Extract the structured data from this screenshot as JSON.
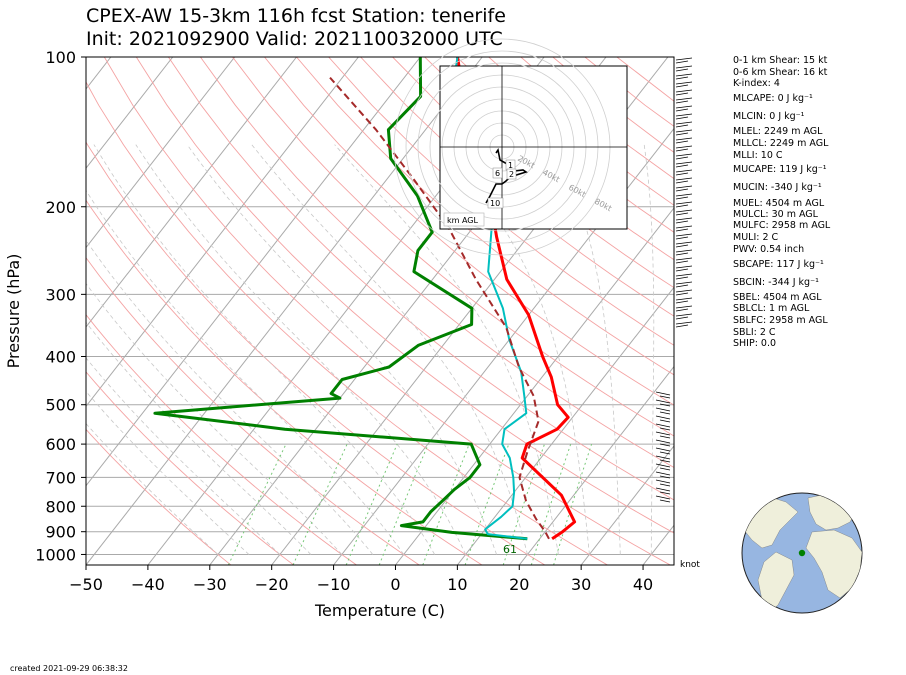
{
  "title_line1": "CPEX-AW 15-3km  116h fcst  Station: tenerife",
  "title_line2": "Init: 2021092900  Valid: 202110032000 UTC",
  "footer": "created 2021-09-29 06:38:32",
  "knots_label": "knot",
  "indices": [
    {
      "text": "0-1 km Shear: 15 kt"
    },
    {
      "text": "0-6 km Shear: 16 kt"
    },
    {
      "text": "K-index: 4"
    },
    {
      "text": "MLCAPE: 0 J kg⁻¹"
    },
    {
      "text": "MLCIN: 0 J kg⁻¹"
    },
    {
      "text": "MLEL: 2249 m AGL"
    },
    {
      "text": "MLLCL: 2249 m AGL"
    },
    {
      "text": "MLLI: 10 C"
    },
    {
      "text": "MUCAPE: 119 J kg⁻¹"
    },
    {
      "text": "MUCIN: -340 J kg⁻¹"
    },
    {
      "text": "MUEL: 4504 m AGL"
    },
    {
      "text": "MULCL: 30 m AGL"
    },
    {
      "text": "MULFC: 2958 m AGL"
    },
    {
      "text": "MULI: 2 C"
    },
    {
      "text": "PWV: 0.54 inch"
    },
    {
      "text": "SBCAPE: 117 J kg⁻¹"
    },
    {
      "text": "SBCIN: -344 J kg⁻¹"
    },
    {
      "text": "SBEL: 4504 m AGL"
    },
    {
      "text": "SBLCL: 1 m AGL"
    },
    {
      "text": "SBLFC: 2958 m AGL"
    },
    {
      "text": "SBLI: 2 C"
    },
    {
      "text": "SHIP: 0.0"
    }
  ],
  "hodograph": {
    "speed_rings": [
      "20kt",
      "40kt",
      "60kt",
      "80kt"
    ],
    "height_labels": [
      "1",
      "2",
      "6",
      "10"
    ],
    "agl_label": "km AGL"
  },
  "colors": {
    "temperature": "#ff0000",
    "dewpoint": "#008000",
    "wetbulb": "#00bfbf",
    "parcel": "#a52a2a",
    "dry_adiabat": "#f4a3a3",
    "moist_adiabat": "#c8c8c8",
    "mixing_ratio": "#78c878",
    "ocean": "#97b6e1",
    "land": "#efefdb"
  },
  "station_pw_label": "61",
  "chart_data": {
    "type": "line",
    "xlabel": "Temperature (C)",
    "ylabel": "Pressure (hPa)",
    "xlim": [
      -50,
      45
    ],
    "ylim": [
      1050,
      100
    ],
    "x_ticks": [
      -50,
      -40,
      -30,
      -20,
      -10,
      0,
      10,
      20,
      30,
      40
    ],
    "y_ticks": [
      100,
      200,
      300,
      400,
      500,
      600,
      700,
      800,
      900,
      1000
    ],
    "y_scale": "log",
    "skew": "skew-T",
    "grid": true,
    "series": [
      {
        "key": "temperature",
        "points": [
          [
            22.0,
            930
          ],
          [
            22.8,
            900
          ],
          [
            23.5,
            860
          ],
          [
            18,
            760
          ],
          [
            7,
            640
          ],
          [
            6,
            600
          ],
          [
            9,
            560
          ],
          [
            9.3,
            530
          ],
          [
            6,
            500
          ],
          [
            1.5,
            440
          ],
          [
            -2.5,
            400
          ],
          [
            -10,
            330
          ],
          [
            -18,
            280
          ],
          [
            -25,
            230
          ],
          [
            -35,
            170
          ],
          [
            -42,
            140
          ],
          [
            -48,
            120
          ],
          [
            -54,
            100
          ]
        ]
      },
      {
        "key": "dewpoint",
        "points": [
          [
            18,
            930
          ],
          [
            5,
            903
          ],
          [
            -4,
            875
          ],
          [
            -1,
            860
          ],
          [
            -1,
            820
          ],
          [
            -0.5,
            780
          ],
          [
            0,
            740
          ],
          [
            1,
            700
          ],
          [
            1,
            660
          ],
          [
            -3,
            600
          ],
          [
            -35,
            560
          ],
          [
            -58,
            520
          ],
          [
            -30,
            485
          ],
          [
            -32,
            475
          ],
          [
            -32,
            445
          ],
          [
            -26,
            420
          ],
          [
            -24,
            380
          ],
          [
            -18,
            345
          ],
          [
            -20,
            320
          ],
          [
            -34,
            270
          ],
          [
            -36,
            245
          ],
          [
            -36,
            225
          ],
          [
            -43,
            190
          ],
          [
            -52,
            160
          ],
          [
            -56,
            140
          ],
          [
            -55,
            120
          ],
          [
            -60,
            100
          ]
        ]
      },
      {
        "key": "wetbulb",
        "points": [
          [
            18,
            930
          ],
          [
            11,
            910
          ],
          [
            10,
            890
          ],
          [
            11,
            840
          ],
          [
            11.5,
            800
          ],
          [
            10,
            750
          ],
          [
            8,
            700
          ],
          [
            5,
            640
          ],
          [
            2,
            600
          ],
          [
            0.5,
            560
          ],
          [
            2,
            520
          ],
          [
            -0.5,
            480
          ],
          [
            -4,
            430
          ],
          [
            -10,
            370
          ],
          [
            -15,
            320
          ],
          [
            -22,
            270
          ],
          [
            -27,
            220
          ],
          [
            -37,
            170
          ],
          [
            -45,
            140
          ],
          [
            -50,
            120
          ],
          [
            -54,
            100
          ]
        ]
      },
      {
        "key": "parcel",
        "dashed": true,
        "points": [
          [
            21.5,
            930
          ],
          [
            20,
            900
          ],
          [
            17,
            850
          ],
          [
            13,
            780
          ],
          [
            9,
            700
          ],
          [
            7,
            620
          ],
          [
            5,
            540
          ],
          [
            1,
            480
          ],
          [
            -5,
            420
          ],
          [
            -12,
            350
          ],
          [
            -23,
            280
          ],
          [
            -34,
            220
          ],
          [
            -46,
            175
          ],
          [
            -58,
            140
          ],
          [
            -72,
            110
          ]
        ]
      }
    ]
  }
}
